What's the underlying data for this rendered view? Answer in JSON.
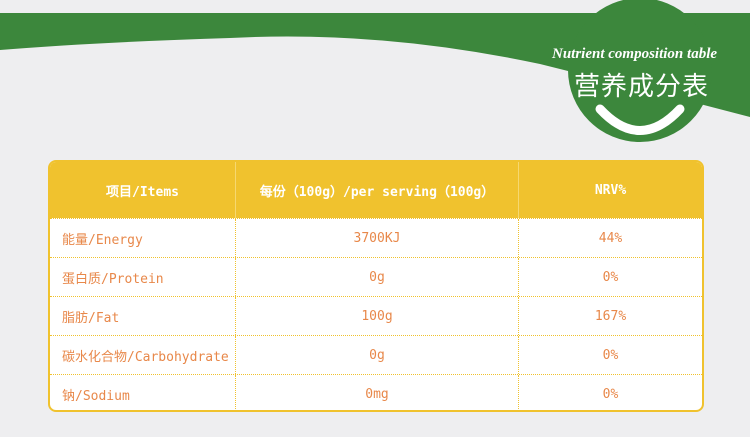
{
  "banner": {
    "title_en": "Nutrient composition table",
    "title_cn": "营养成分表",
    "color": "#3c873c"
  },
  "table": {
    "headers": [
      "项目/Items",
      "每份（100g）/per serving（100g）",
      "NRV%"
    ],
    "rows": [
      [
        "能量/Energy",
        "3700KJ",
        "44%"
      ],
      [
        "蛋白质/Protein",
        "0g",
        "0%"
      ],
      [
        "脂肪/Fat",
        "100g",
        "167%"
      ],
      [
        "碳水化合物/Carbohydrate",
        "0g",
        "0%"
      ],
      [
        "钠/Sodium",
        "0mg",
        "0%"
      ]
    ],
    "header_color": "#f0c22e",
    "text_color": "#e8884a"
  }
}
